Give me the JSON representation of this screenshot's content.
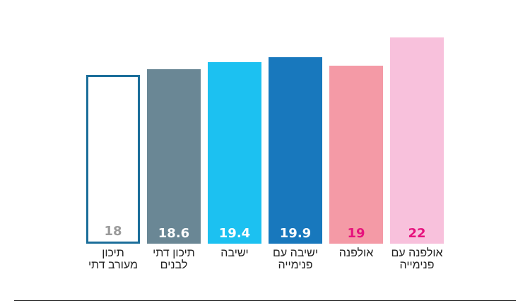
{
  "chart_data": {
    "type": "bar",
    "categories": [
      "תיכון\nמעורב דתי",
      "תיכון דתי\nלבנים",
      "ישיבה",
      "ישיבה עם\nפנימייה",
      "אולפנה",
      "אולפנה עם\nפנימייה"
    ],
    "values": [
      18,
      18.6,
      19.4,
      19.9,
      19,
      22
    ],
    "value_labels": [
      "18",
      "18.6",
      "19.4",
      "19.9",
      "19",
      "22"
    ],
    "bar_colors": [
      "#ffffff",
      "#6a8795",
      "#1cc1f1",
      "#1878bd",
      "#f49aa6",
      "#f8c1dc"
    ],
    "bar_outline_colors": [
      "#1b6e9a",
      null,
      null,
      null,
      null,
      null
    ],
    "value_label_colors": [
      "#9a9a9a",
      "#ffffff",
      "#ffffff",
      "#ffffff",
      "#e6127d",
      "#e6127d"
    ],
    "ylim": [
      0,
      22
    ],
    "grid": false,
    "legend": "none"
  }
}
